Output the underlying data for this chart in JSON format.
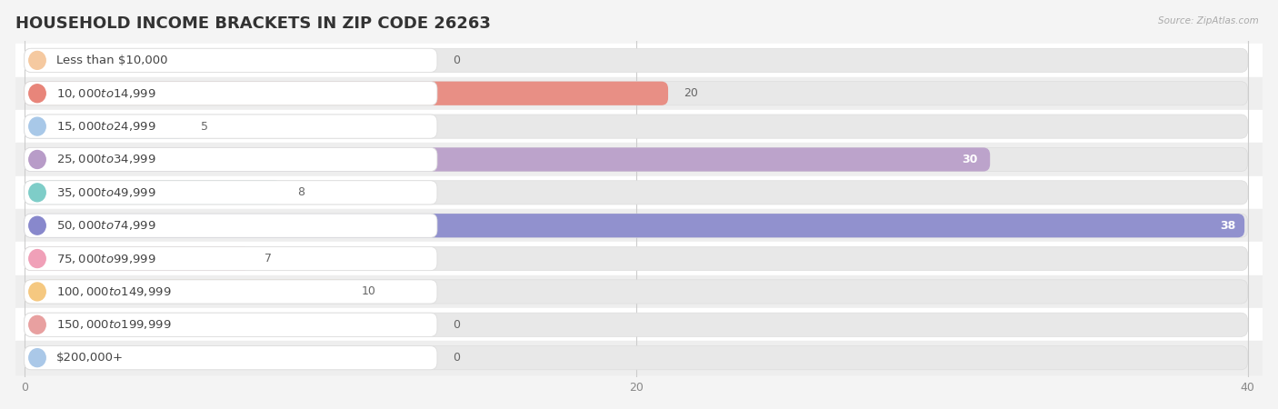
{
  "title": "HOUSEHOLD INCOME BRACKETS IN ZIP CODE 26263",
  "source": "Source: ZipAtlas.com",
  "categories": [
    "Less than $10,000",
    "$10,000 to $14,999",
    "$15,000 to $24,999",
    "$25,000 to $34,999",
    "$35,000 to $49,999",
    "$50,000 to $74,999",
    "$75,000 to $99,999",
    "$100,000 to $149,999",
    "$150,000 to $199,999",
    "$200,000+"
  ],
  "values": [
    0,
    20,
    5,
    30,
    8,
    38,
    7,
    10,
    0,
    0
  ],
  "bar_colors": [
    "#f5c9a0",
    "#e8857a",
    "#a8c8e8",
    "#b89cc8",
    "#7ecdc8",
    "#8888cc",
    "#f0a0b8",
    "#f5c880",
    "#e8a0a0",
    "#aac8e8"
  ],
  "bg_color": "#f4f4f4",
  "row_bg_light": "#ffffff",
  "row_bg_dark": "#eeeeee",
  "xlim_max": 40,
  "xticks": [
    0,
    20,
    40
  ],
  "title_fontsize": 13,
  "label_fontsize": 9.5,
  "value_fontsize": 9
}
